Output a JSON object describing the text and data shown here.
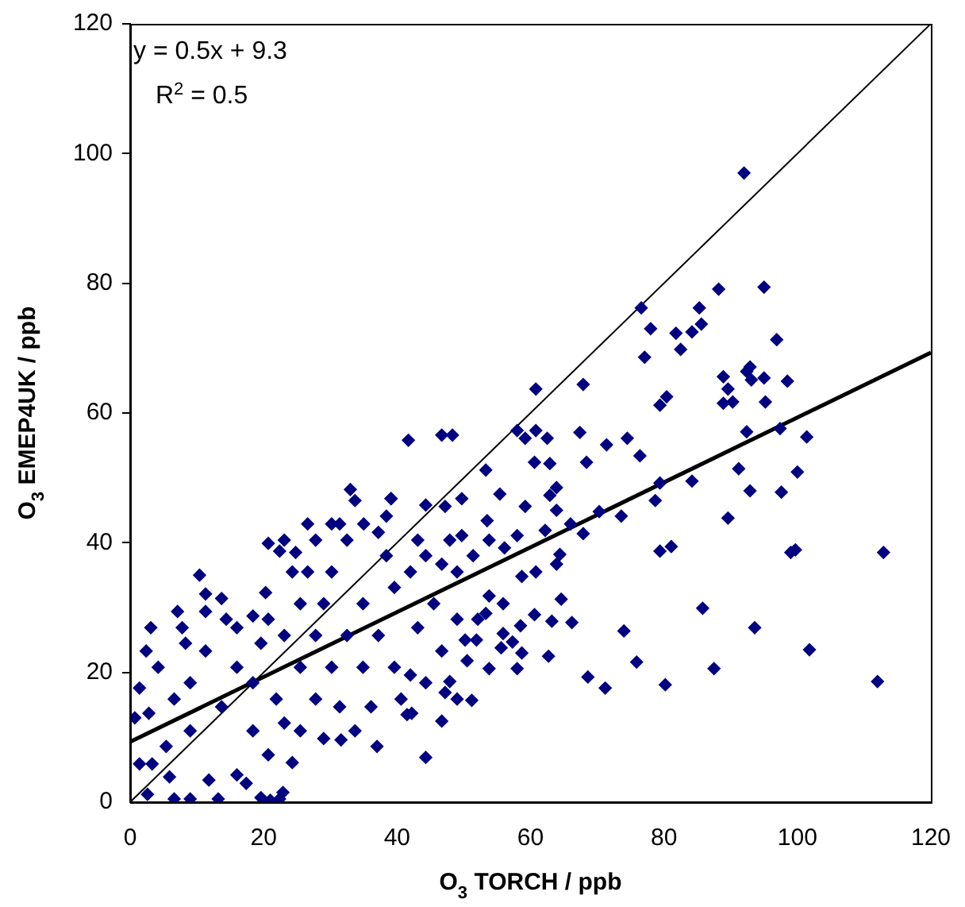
{
  "chart_data": {
    "type": "scatter",
    "xlabel": "O$_{3}$ TORCH / ppb",
    "ylabel": "O$_{3}$ EMEP4UK / ppb",
    "annotations": [
      "y = 0.5x + 9.3",
      "R$^{2}$ = 0.5"
    ],
    "xlim": [
      0,
      120
    ],
    "xticks": [
      0,
      20,
      40,
      60,
      80,
      100,
      120
    ],
    "ylim": [
      0,
      120
    ],
    "yticks": [
      0,
      20,
      40,
      60,
      80,
      100,
      120
    ],
    "grid": false,
    "legend": false,
    "marker": "diamond",
    "series": [
      {
        "type": "scatter",
        "color": "#000080",
        "x": [
          92,
          88.2,
          95,
          76.6,
          78,
          81.8,
          82.5,
          84.2,
          85.3,
          85.6,
          96.9,
          77.1,
          88.9,
          89.6,
          88.9,
          90.3,
          92.4,
          92.9,
          93.1,
          95,
          95.2,
          98.5,
          79.4,
          80.4,
          92.4,
          97.4,
          101.4,
          76.4,
          91.2,
          100,
          79.4,
          84.2,
          78.7,
          92.9,
          97.6,
          89.6,
          79.4,
          81.1,
          99,
          99.7,
          112.9,
          85.8,
          93.6,
          101.8,
          75.9,
          87.5,
          80.2,
          112,
          60.8,
          67.9,
          41.7,
          46.7,
          48.3,
          58,
          60.8,
          59.2,
          62.5,
          67.4,
          71.4,
          74.5,
          60.6,
          62.9,
          68.4,
          53.3,
          55.4,
          63.9,
          62.9,
          59.2,
          63.9,
          70.3,
          73.6,
          49.7,
          39.1,
          47.2,
          44.3,
          53.5,
          58,
          62.2,
          66,
          67.9,
          49.7,
          64.4,
          63.9,
          60.8,
          58.7,
          53.8,
          55.9,
          64.6,
          60.6,
          63.2,
          66.2,
          58.5,
          52.1,
          53.3,
          50.2,
          51.9,
          55.9,
          57.3,
          55.6,
          58.7,
          62.7,
          58,
          50.5,
          53.8,
          74,
          68.6,
          71.2,
          47.9,
          47.2,
          49,
          51.2,
          42.2,
          46.7,
          44.3,
          33,
          39.1,
          20.7,
          22.4,
          24.8,
          10.4,
          11.3,
          13.7,
          20.3,
          18.4,
          14.4,
          8.3,
          1.4,
          2.8,
          0.7,
          1.4,
          3.3,
          5.9,
          2.6,
          6.6,
          9,
          11.8,
          13.2,
          16,
          17.4,
          19.6,
          21,
          22.9,
          22.4,
          31.6,
          37,
          41.5,
          11.3,
          16,
          18.4,
          21.9,
          23.1,
          25.5,
          27.8,
          29,
          30.2,
          32.5,
          35,
          37.2,
          38.4,
          39.6,
          42,
          44.3,
          46.7,
          49,
          51.4,
          34.9,
          32.5,
          30.2,
          27.8,
          25.5,
          37.2,
          39.6,
          42,
          34.9,
          9,
          6.6,
          13.7,
          18.4,
          20.7,
          24.3,
          9,
          5.4,
          4.2,
          3.1,
          7.8,
          16,
          19.6,
          23.1,
          25.5,
          26.6,
          27.8,
          31.4,
          33.7,
          38.4,
          43.1,
          47.9,
          53.8,
          56.1,
          45.5,
          49,
          43.1,
          46.7,
          44.3,
          40.6,
          36.1,
          31.4,
          33.7,
          29,
          11.3,
          7.1,
          2.4,
          20.7,
          24.3,
          23.1,
          26.6,
          30.2
        ],
        "values": [
          97,
          79.1,
          79.4,
          76.2,
          73,
          72.3,
          69.8,
          72.5,
          76.2,
          73.7,
          71.3,
          68.6,
          65.6,
          63.7,
          61.5,
          61.7,
          66.4,
          67.1,
          65.1,
          65.4,
          61.7,
          64.9,
          61.2,
          62.5,
          57.1,
          57.6,
          56.3,
          53.4,
          51.4,
          50.9,
          49.2,
          49.5,
          46.5,
          48,
          47.8,
          43.8,
          38.7,
          39.4,
          38.5,
          38.9,
          38.5,
          29.9,
          26.9,
          23.5,
          21.6,
          20.6,
          18.1,
          18.6,
          63.7,
          64.4,
          55.8,
          56.6,
          56.6,
          57.3,
          57.3,
          56.1,
          56.1,
          57,
          55.1,
          56.1,
          52.4,
          52.2,
          52.4,
          51.2,
          47.5,
          48.5,
          47.3,
          45.6,
          45,
          44.8,
          44.1,
          46.8,
          46.8,
          45.6,
          45.8,
          43.4,
          41.1,
          41.9,
          42.9,
          41.4,
          41.1,
          38.2,
          36.7,
          35.5,
          34.8,
          31.8,
          30.6,
          31.3,
          28.9,
          27.9,
          27.7,
          27.2,
          28.2,
          29.1,
          25,
          25,
          26,
          24.7,
          23.8,
          23,
          22.5,
          20.6,
          21.8,
          20.6,
          26.4,
          19.3,
          17.6,
          18.6,
          16.9,
          15.9,
          15.7,
          13.7,
          12.5,
          6.9,
          48.2,
          46.8,
          39.9,
          38.7,
          38.5,
          35,
          32.1,
          31.4,
          32.3,
          28.7,
          28.2,
          24.5,
          17.6,
          13.7,
          13,
          5.9,
          5.9,
          3.9,
          1.2,
          0.5,
          0.5,
          3.4,
          0.5,
          4.2,
          2.9,
          0.7,
          0.3,
          1.5,
          0.5,
          9.6,
          8.6,
          13.5,
          23.3,
          20.8,
          18.4,
          15.9,
          12.2,
          20.8,
          25.7,
          30.6,
          35.5,
          40.4,
          42.9,
          41.6,
          38,
          33.1,
          35.5,
          38,
          36.7,
          35.5,
          38,
          30.6,
          25.7,
          20.8,
          15.9,
          11,
          25.7,
          20.8,
          19.6,
          20.8,
          18.4,
          15.9,
          14.7,
          11,
          7.3,
          6.1,
          11,
          8.6,
          20.8,
          26.9,
          26.9,
          26.9,
          24.5,
          25.7,
          30.6,
          35.5,
          40.4,
          42.9,
          46.5,
          44.1,
          40.4,
          40.4,
          40.4,
          39.2,
          30.6,
          28.2,
          26.9,
          23.3,
          18.4,
          15.9,
          14.7,
          14.7,
          11,
          9.8,
          29.4,
          29.4,
          23.3,
          28.2,
          35.5,
          40.4,
          42.9,
          42.9
        ]
      },
      {
        "type": "line",
        "color": "#000000",
        "x": [
          0,
          120
        ],
        "values": [
          0,
          120
        ],
        "marker": "none"
      },
      {
        "type": "line",
        "color": "#000000",
        "x": [
          0,
          120
        ],
        "values": [
          9.3,
          69.3
        ],
        "marker": "none"
      }
    ]
  }
}
